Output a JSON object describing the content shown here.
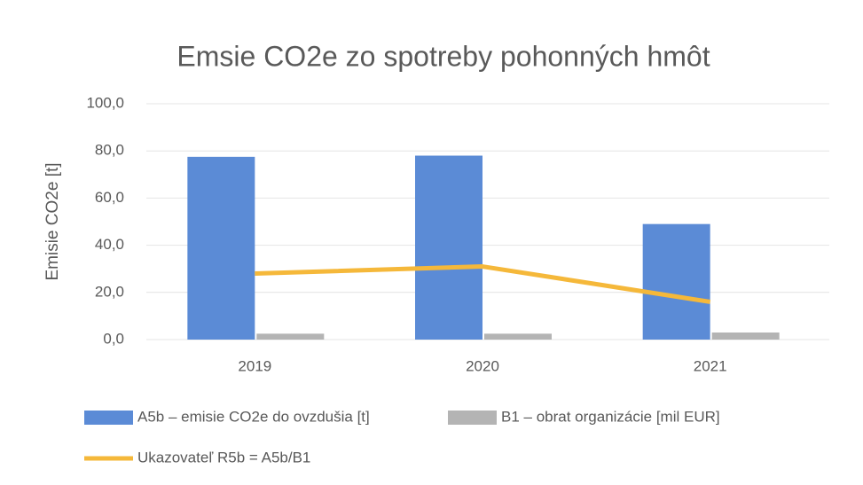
{
  "chart_data": {
    "type": "bar_line",
    "title": "Emsie CO2e zo spotreby pohonných hmôt",
    "y_label": "Emisie CO2e [t]",
    "categories": [
      "2019",
      "2020",
      "2021"
    ],
    "series": [
      {
        "name": "A5b – emisie CO2e do ovzdušia [t]",
        "color": "#5b8bd6",
        "type": "bar",
        "values": [
          77.5,
          78,
          49
        ]
      },
      {
        "name": "B1 – obrat organizácie [mil EUR]",
        "color": "#b4b4b4",
        "type": "bar",
        "values": [
          2.5,
          2.5,
          3
        ]
      },
      {
        "name": "Ukazovateľ R5b = A5b/B1",
        "color": "#f5b83a",
        "type": "line",
        "values": [
          28,
          31,
          16
        ]
      }
    ],
    "ylim": [
      0,
      100
    ],
    "yticks": [
      {
        "value": 0,
        "label": "0,0"
      },
      {
        "value": 20,
        "label": "20,0"
      },
      {
        "value": 40,
        "label": "40,0"
      },
      {
        "value": 60,
        "label": "60,0"
      },
      {
        "value": 80,
        "label": "80,0"
      },
      {
        "value": 100,
        "label": "100,0"
      }
    ],
    "grid": true
  }
}
